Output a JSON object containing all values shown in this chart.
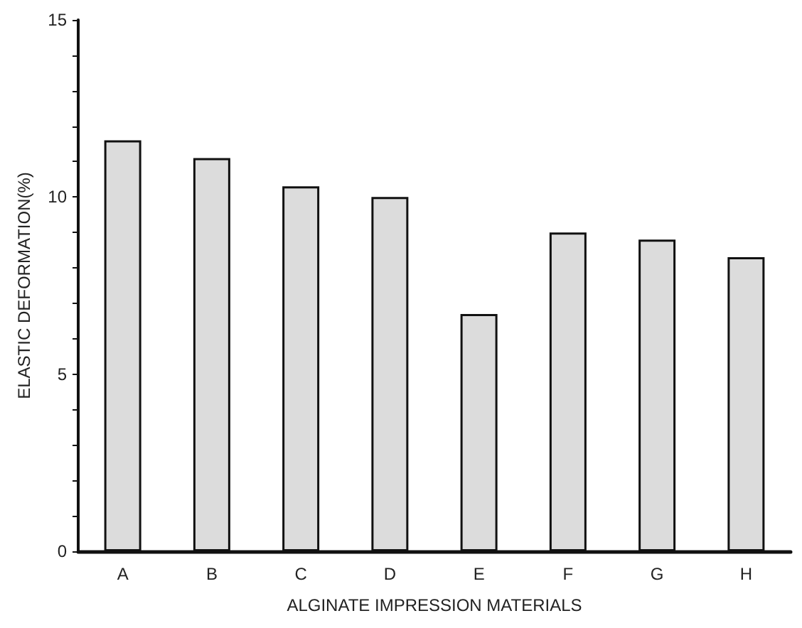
{
  "chart_data": {
    "type": "bar",
    "xlabel": "ALGINATE IMPRESSION MATERIALS",
    "ylabel": "ELASTIC DEFORMATION(%)",
    "categories": [
      "A",
      "B",
      "C",
      "D",
      "E",
      "F",
      "G",
      "H"
    ],
    "values": [
      11.6,
      11.1,
      10.3,
      10.0,
      6.7,
      9.0,
      8.8,
      8.3
    ],
    "color": "#dcdcdc",
    "ylim": [
      0,
      15
    ],
    "yticks": [
      0,
      {
        "value": 1,
        "label": null
      },
      {
        "value": 2,
        "label": null
      },
      {
        "value": 3,
        "label": null
      },
      {
        "value": 4,
        "label": null
      },
      5,
      {
        "value": 6,
        "label": null
      },
      {
        "value": 7,
        "label": null
      },
      {
        "value": 8,
        "label": null
      },
      {
        "value": 9,
        "label": null
      },
      10,
      {
        "value": 11,
        "label": null
      },
      {
        "value": 12,
        "label": null
      },
      {
        "value": 13,
        "label": null
      },
      {
        "value": 14,
        "label": null
      },
      15
    ],
    "grid": false
  }
}
